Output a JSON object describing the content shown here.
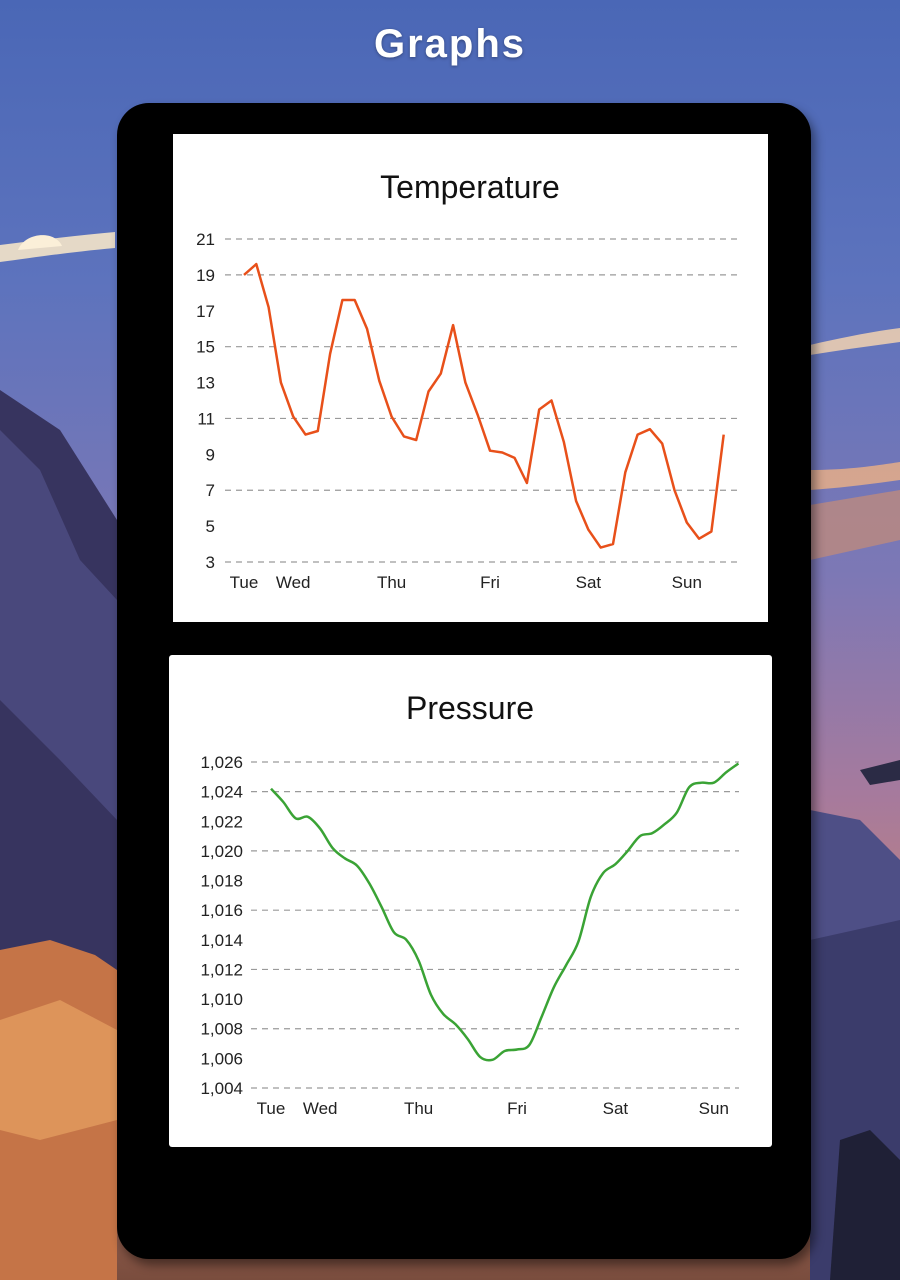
{
  "app": {
    "title": "Graphs"
  },
  "charts": [
    {
      "id": "temperature",
      "type": "line",
      "title": "Temperature",
      "color": "#e8501a",
      "ylim": [
        3,
        21
      ],
      "y_ticks": [
        "21",
        "19",
        "17",
        "15",
        "13",
        "11",
        "9",
        "7",
        "5",
        "3"
      ],
      "x_ticks": [
        "Tue",
        "Wed",
        "Thu",
        "Fri",
        "Sat",
        "Sun"
      ],
      "grid": "dashed horizontal at 3, 7, 11, 15, 19, 21"
    },
    {
      "id": "pressure",
      "type": "line",
      "title": "Pressure",
      "color": "#3aa335",
      "ylim": [
        1004,
        1026
      ],
      "y_ticks": [
        "1,026",
        "1,024",
        "1,022",
        "1,020",
        "1,018",
        "1,016",
        "1,014",
        "1,012",
        "1,010",
        "1,008",
        "1,006",
        "1,004"
      ],
      "x_ticks": [
        "Tue",
        "Wed",
        "Thu",
        "Fri",
        "Sat",
        "Sun"
      ],
      "grid": "dashed horizontal at 1,004, 1,008, 1,012, 1,016, 1,020, 1,024, 1,026"
    }
  ],
  "chart_data": [
    {
      "type": "line",
      "title": "Temperature",
      "xlabel": "",
      "ylabel": "",
      "ylim": [
        3,
        21
      ],
      "x_start_label": "Tue",
      "x_tick_labels": [
        "Tue",
        "Wed",
        "Thu",
        "Fri",
        "Sat",
        "Sun"
      ],
      "x_tick_positions": [
        0,
        4,
        12,
        20,
        28,
        36
      ],
      "values": [
        19.0,
        19.6,
        17.2,
        13.0,
        11.1,
        10.1,
        10.3,
        14.6,
        17.6,
        17.6,
        16.0,
        13.1,
        11.1,
        10.0,
        9.8,
        12.5,
        13.5,
        16.2,
        13.0,
        11.2,
        9.2,
        9.1,
        8.8,
        7.4,
        11.5,
        12.0,
        9.7,
        6.4,
        4.8,
        3.8,
        4.0,
        8.0,
        10.1,
        10.4,
        9.6,
        7.0,
        5.2,
        4.3,
        4.7,
        10.1
      ],
      "grid": true
    },
    {
      "type": "line",
      "title": "Pressure",
      "xlabel": "",
      "ylabel": "",
      "ylim": [
        1004,
        1026
      ],
      "x_tick_labels": [
        "Tue",
        "Wed",
        "Thu",
        "Fri",
        "Sat",
        "Sun"
      ],
      "x_tick_positions": [
        0,
        4,
        12,
        20,
        28,
        36
      ],
      "values": [
        1024.2,
        1023.3,
        1022.2,
        1022.3,
        1021.5,
        1020.2,
        1019.5,
        1019.0,
        1017.8,
        1016.2,
        1014.5,
        1014.0,
        1012.6,
        1010.3,
        1009.0,
        1008.3,
        1007.3,
        1006.1,
        1005.9,
        1006.5,
        1006.6,
        1006.9,
        1008.8,
        1010.8,
        1012.3,
        1013.9,
        1016.9,
        1018.5,
        1019.1,
        1020.0,
        1021.0,
        1021.2,
        1021.8,
        1022.6,
        1024.3,
        1024.6,
        1024.6,
        1025.3,
        1025.9
      ],
      "grid": true
    }
  ]
}
